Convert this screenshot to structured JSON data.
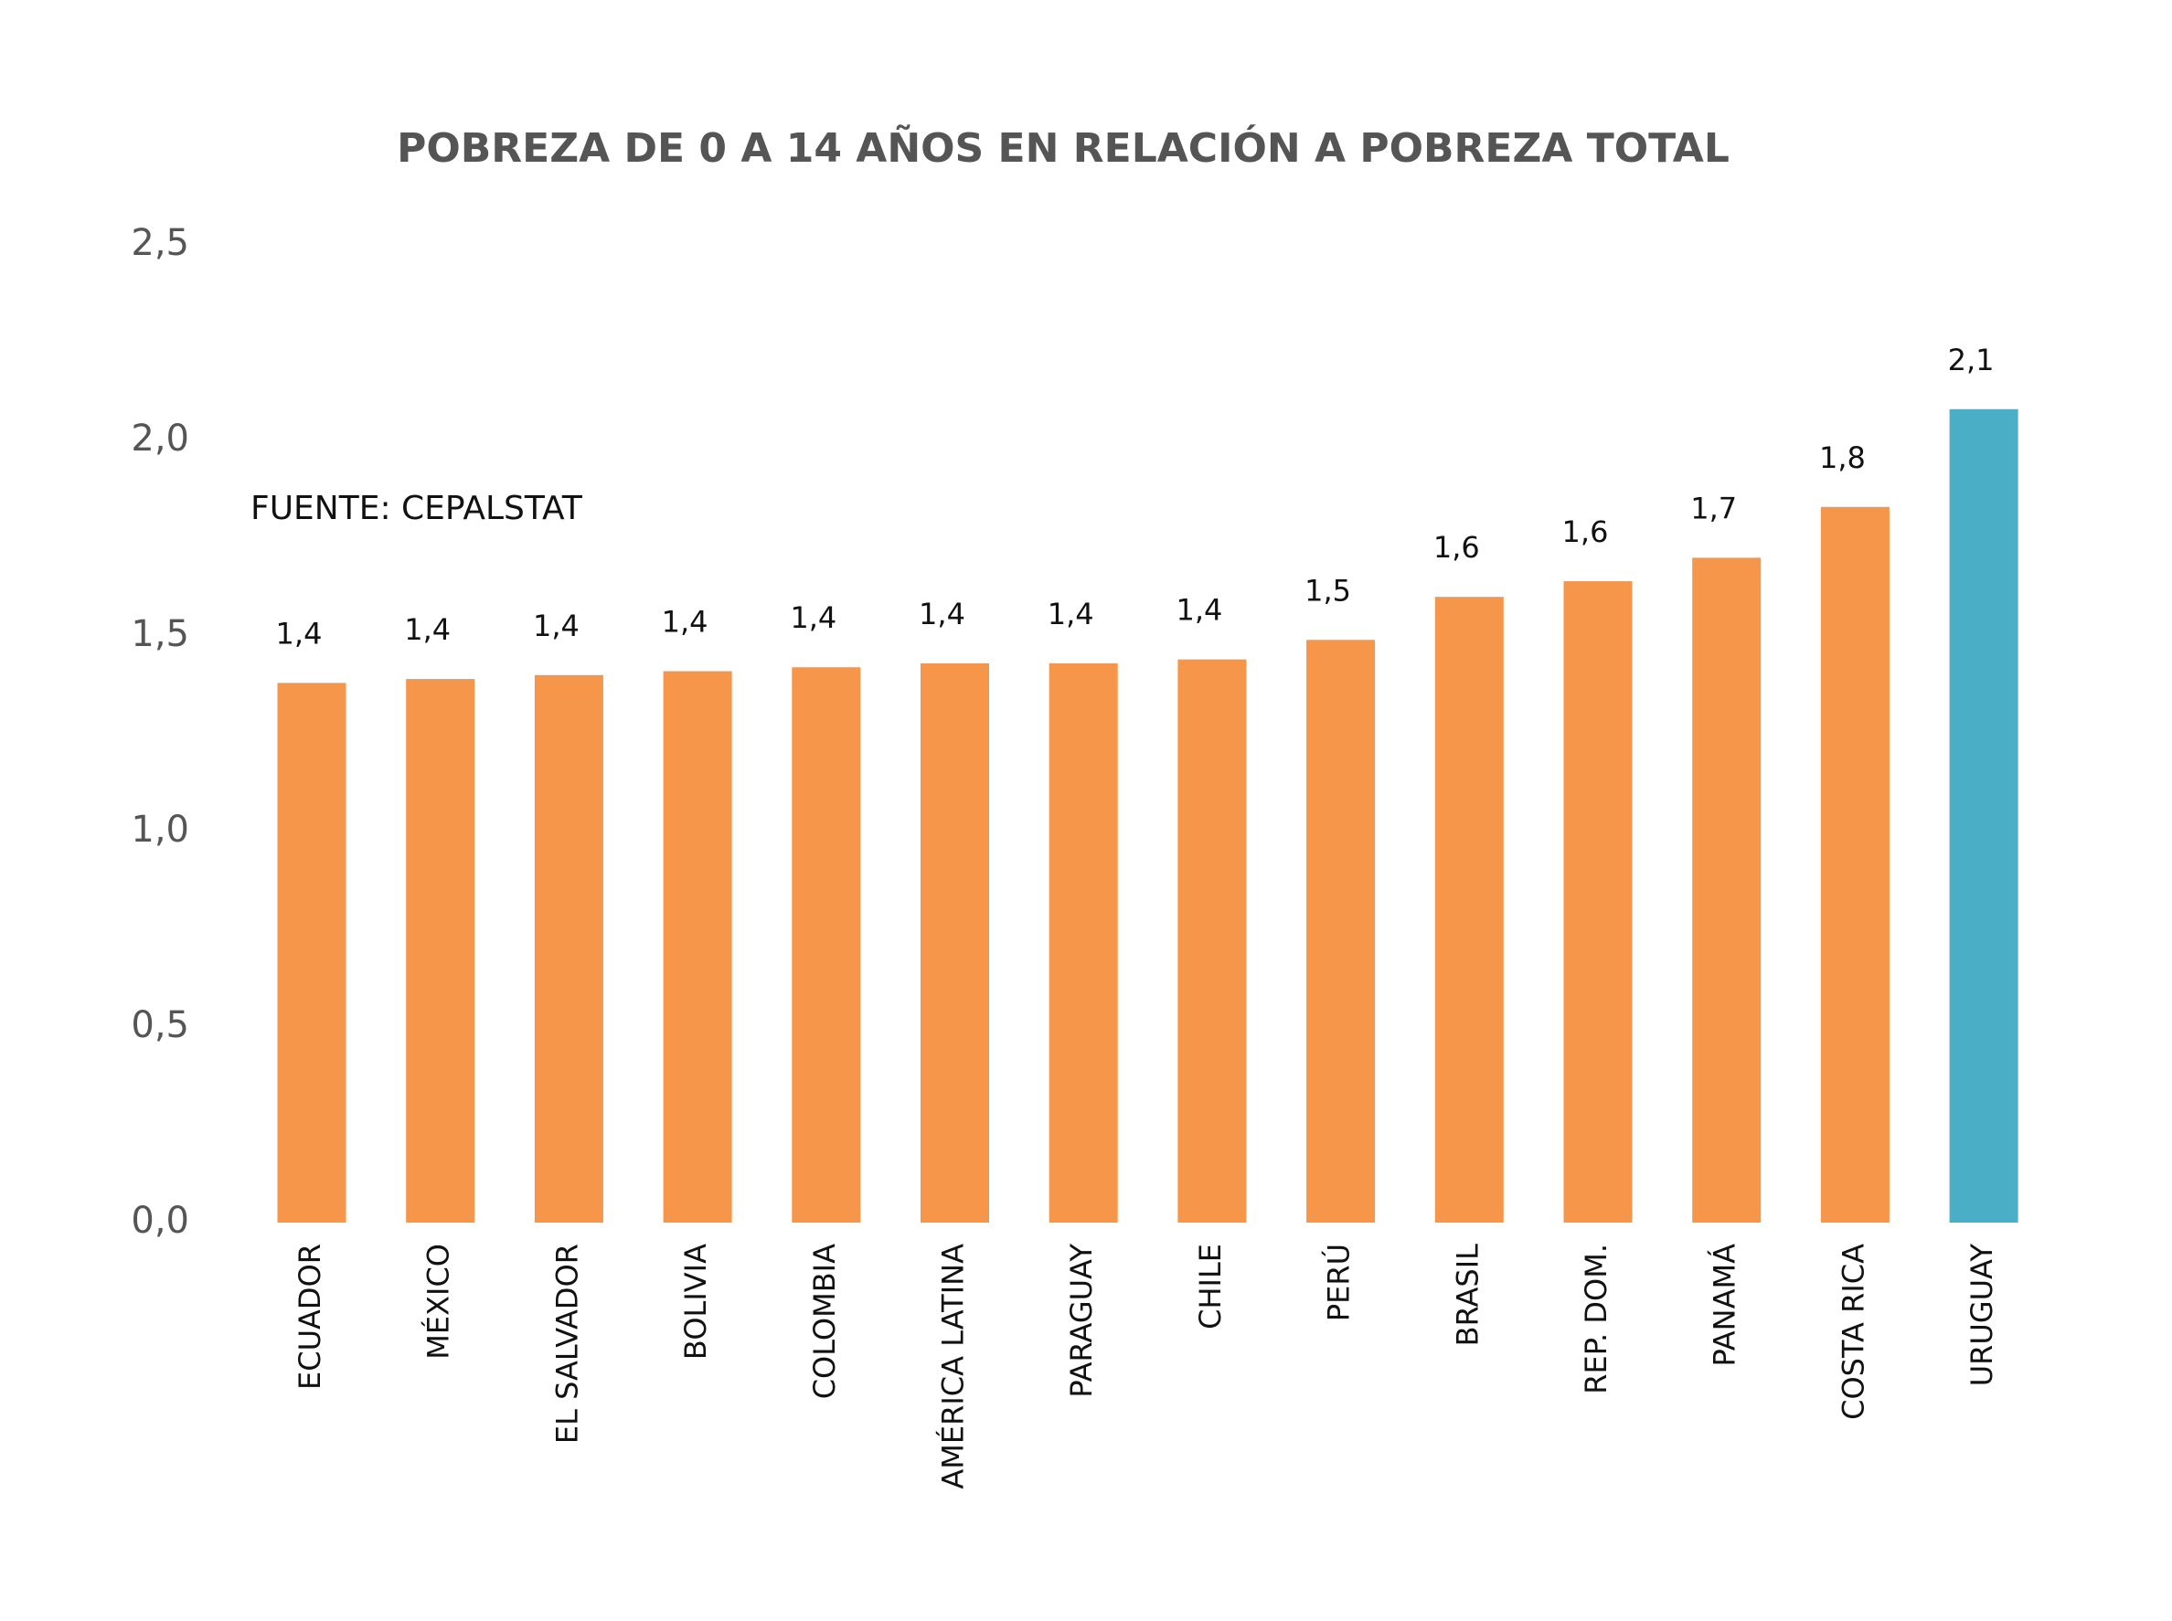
{
  "chart_data": {
    "type": "bar",
    "title": "POBREZA DE 0 A 14 AÑOS EN RELACIÓN A POBREZA TOTAL",
    "annotation": "FUENTE: CEPALSTAT",
    "categories": [
      "ECUADOR",
      "MÉXICO",
      "EL SALVADOR",
      "BOLIVIA",
      "COLOMBIA",
      "AMÉRICA LATINA",
      "PARAGUAY",
      "CHILE",
      "PERÚ",
      "BRASIL",
      "REP. DOM.",
      "PANAMÁ",
      "COSTA RICA",
      "URUGUAY"
    ],
    "values": [
      1.38,
      1.39,
      1.4,
      1.41,
      1.42,
      1.43,
      1.43,
      1.44,
      1.49,
      1.6,
      1.64,
      1.7,
      1.83,
      2.08
    ],
    "value_labels": [
      "1,4",
      "1,4",
      "1,4",
      "1,4",
      "1,4",
      "1,4",
      "1,4",
      "1,4",
      "1,5",
      "1,6",
      "1,6",
      "1,7",
      "1,8",
      "2,1"
    ],
    "colors": [
      "#f5964a",
      "#f5964a",
      "#f5964a",
      "#f5964a",
      "#f5964a",
      "#f5964a",
      "#f5964a",
      "#f5964a",
      "#f5964a",
      "#f5964a",
      "#f5964a",
      "#f5964a",
      "#f5964a",
      "#4aaec6"
    ],
    "ylim": [
      0,
      2.5
    ],
    "yticks": [
      {
        "value": 0,
        "label": "0,0"
      },
      {
        "value": 0.5,
        "label": "0,5"
      },
      {
        "value": 1,
        "label": "1,0"
      },
      {
        "value": 1.5,
        "label": "1,5"
      },
      {
        "value": 2,
        "label": "2,0"
      },
      {
        "value": 2.5,
        "label": "2,5"
      }
    ],
    "grid": false
  }
}
